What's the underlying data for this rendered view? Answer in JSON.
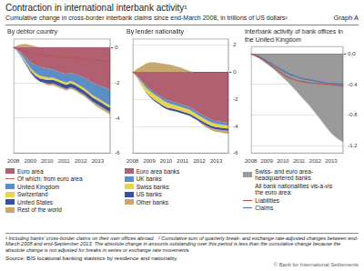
{
  "title": "Contraction in international interbank activity¹",
  "subtitle": "Cumulative change in cross-border interbank claims since end-March 2008, in trillions of US dollars²",
  "annotations": [
    "Graph A",
    "¹ Including banks’ cross-border claims on their own offices abroad.",
    "² Cumulative sum of quarterly break- and exchange rate-adjusted changes between end-March 2008 and end-September 2013. The absolute change in amounts outstanding over this period is less than the cumulative change because the absolute change is not adjusted for breaks in series or exchange rate movements.",
    "Source: BIS locational banking statistics by residence and nationality.",
    "© Bank for International Settlements"
  ],
  "chart_data": [
    {
      "type": "area",
      "title": "By debtor country",
      "stacked": true,
      "grid": "y",
      "legend": "bottom",
      "x": [
        2008,
        2008.2613636363635,
        2008.5227272727273,
        2008.784090909091,
        2009.0454545454545,
        2009.3068181818182,
        2009.5681818181818,
        2009.8295454545455,
        2010.090909090909,
        2010.3522727272727,
        2010.6136363636363,
        2010.875,
        2011.1363636363637,
        2011.3977272727273,
        2011.659090909091,
        2011.9204545454545,
        2012.1818181818182,
        2012.4431818181818,
        2012.7045454545455,
        2012.965909090909,
        2013.2272727272727,
        2013.4886363636363,
        2013.75
      ],
      "xlim": [
        2008,
        2013.75
      ],
      "xticks": [
        2008,
        2009,
        2010,
        2011,
        2012,
        2013
      ],
      "ylim": [
        -6,
        0.5
      ],
      "yticks": [
        0,
        -2,
        -4,
        -6
      ],
      "series": [
        {
          "name": "Euro area",
          "color": "#b06070",
          "values": [
            0,
            -0.15,
            -0.35,
            -0.6,
            -0.85,
            -1.0,
            -1.1,
            -1.15,
            -1.2,
            -1.25,
            -1.35,
            -1.45,
            -1.5,
            -1.45,
            -1.5,
            -1.6,
            -1.7,
            -1.85,
            -2.0,
            -2.1,
            -2.2,
            -2.3,
            -2.4
          ]
        },
        {
          "name": "Of which: from euro area",
          "type": "line",
          "line_style": "dashed",
          "color": "#c0504d",
          "values": [
            0,
            -0.1,
            -0.18,
            -0.25,
            -0.32,
            -0.38,
            -0.42,
            -0.45,
            -0.47,
            -0.5,
            -0.52,
            -0.54,
            -0.56,
            -0.57,
            -0.6,
            -0.63,
            -0.66,
            -0.68,
            -0.7,
            -0.72,
            -0.74,
            -0.76,
            -0.78
          ]
        },
        {
          "name": "United Kingdom",
          "color": "#5b8ec5",
          "values": [
            0,
            -0.05,
            -0.15,
            -0.25,
            -0.35,
            -0.45,
            -0.5,
            -0.5,
            -0.5,
            -0.45,
            -0.45,
            -0.45,
            -0.5,
            -0.45,
            -0.5,
            -0.55,
            -0.6,
            -0.65,
            -0.7,
            -0.75,
            -0.8,
            -0.85,
            -0.9
          ]
        },
        {
          "name": "Switzerland",
          "color": "#e8d44d",
          "values": [
            0,
            -0.03,
            -0.06,
            -0.1,
            -0.13,
            -0.15,
            -0.16,
            -0.16,
            -0.15,
            -0.13,
            -0.12,
            -0.12,
            -0.12,
            -0.13,
            -0.13,
            -0.13,
            -0.13,
            -0.13,
            -0.13,
            -0.13,
            -0.13,
            -0.13,
            -0.13
          ]
        },
        {
          "name": "United States",
          "color": "#3a4fa0",
          "values": [
            0,
            -0.03,
            -0.06,
            -0.1,
            -0.13,
            -0.16,
            -0.18,
            -0.19,
            -0.2,
            -0.21,
            -0.22,
            -0.22,
            -0.22,
            -0.22,
            -0.22,
            -0.23,
            -0.23,
            -0.23,
            -0.23,
            -0.23,
            -0.23,
            -0.23,
            -0.23
          ]
        },
        {
          "name": "Rest of the world",
          "color": "#c8a870",
          "values": [
            0,
            0.12,
            0.18,
            0.18,
            0.12,
            0.06,
            0.0,
            -0.06,
            -0.1,
            -0.1,
            -0.1,
            -0.1,
            -0.1,
            -0.1,
            -0.1,
            -0.1,
            -0.1,
            -0.1,
            -0.1,
            -0.15,
            -0.15,
            -0.15,
            -0.15
          ]
        }
      ]
    },
    {
      "type": "area",
      "title": "By lender nationality",
      "stacked": true,
      "grid": "y",
      "legend": "bottom",
      "x": [
        2008,
        2008.2613636363635,
        2008.5227272727273,
        2008.784090909091,
        2009.0454545454545,
        2009.3068181818182,
        2009.5681818181818,
        2009.8295454545455,
        2010.090909090909,
        2010.3522727272727,
        2010.6136363636363,
        2010.875,
        2011.1363636363637,
        2011.3977272727273,
        2011.659090909091,
        2011.9204545454545,
        2012.1818181818182,
        2012.4431818181818,
        2012.7045454545455,
        2012.965909090909,
        2013.2272727272727,
        2013.4886363636363,
        2013.75
      ],
      "xlim": [
        2008,
        2013.75
      ],
      "xticks": [
        2008,
        2009,
        2010,
        2011,
        2012,
        2013
      ],
      "ylim": [
        -6,
        2.5
      ],
      "yticks": [
        2,
        0,
        -2,
        -4,
        -6
      ],
      "series": [
        {
          "name": "Euro area banks",
          "color": "#b06070",
          "values": [
            0,
            -0.25,
            -0.6,
            -0.95,
            -1.25,
            -1.5,
            -1.7,
            -1.9,
            -2.05,
            -2.15,
            -2.25,
            -2.35,
            -2.45,
            -2.55,
            -2.75,
            -2.95,
            -3.15,
            -3.35,
            -3.5,
            -3.6,
            -3.65,
            -3.7,
            -3.75
          ]
        },
        {
          "name": "UK banks",
          "color": "#5b8ec5",
          "values": [
            0,
            -0.05,
            -0.1,
            -0.15,
            -0.15,
            -0.15,
            -0.15,
            -0.18,
            -0.2,
            -0.2,
            -0.2,
            -0.2,
            -0.2,
            -0.2,
            -0.2,
            -0.2,
            -0.2,
            -0.2,
            -0.2,
            -0.2,
            -0.2,
            -0.2,
            -0.2
          ]
        },
        {
          "name": "Swiss banks",
          "color": "#e8d44d",
          "values": [
            0,
            -0.1,
            -0.2,
            -0.3,
            -0.36,
            -0.38,
            -0.38,
            -0.37,
            -0.36,
            -0.32,
            -0.3,
            -0.3,
            -0.3,
            -0.3,
            -0.28,
            -0.27,
            -0.26,
            -0.25,
            -0.25,
            -0.24,
            -0.23,
            -0.22,
            -0.21
          ]
        },
        {
          "name": "US banks",
          "color": "#3a4fa0",
          "values": [
            0,
            -0.02,
            -0.04,
            -0.06,
            -0.08,
            -0.1,
            -0.12,
            -0.14,
            -0.15,
            -0.16,
            -0.16,
            -0.16,
            -0.16,
            -0.16,
            -0.16,
            -0.16,
            -0.16,
            -0.16,
            -0.16,
            -0.16,
            -0.16,
            -0.16,
            -0.16
          ]
        },
        {
          "name": "Other banks",
          "color": "#c8a870",
          "values": [
            0,
            0.25,
            0.45,
            0.65,
            0.75,
            0.75,
            0.7,
            0.65,
            0.6,
            0.55,
            0.45,
            0.35,
            0.22,
            0.1,
            0.0,
            -0.05,
            -0.1,
            -0.15,
            -0.15,
            -0.2,
            -0.2,
            -0.22,
            -0.22
          ]
        }
      ]
    },
    {
      "type": "area",
      "title": "Interbank activity of bank offices in\nthe United Kingdom",
      "grid": "y",
      "legend": "bottom",
      "annotations": [
        "All bank nationalities vis-à-vis\nthe euro area:"
      ],
      "x": [
        2008,
        2008.2613636363635,
        2008.5227272727273,
        2008.784090909091,
        2009.0454545454545,
        2009.3068181818182,
        2009.5681818181818,
        2009.8295454545455,
        2010.090909090909,
        2010.3522727272727,
        2010.6136363636363,
        2010.875,
        2011.1363636363637,
        2011.3977272727273,
        2011.659090909091,
        2011.9204545454545,
        2012.1818181818182,
        2012.4431818181818,
        2012.7045454545455,
        2012.965909090909,
        2013.2272727272727,
        2013.4886363636363,
        2013.75
      ],
      "xlim": [
        2008,
        2013.75
      ],
      "xticks": [
        2008,
        2009,
        2010,
        2011,
        2012,
        2013
      ],
      "ylim": [
        -1.3,
        0.1
      ],
      "yticks": [
        {
          "value": 0,
          "label": "0.0"
        },
        -0.4,
        -0.8,
        -1.2
      ],
      "series": [
        {
          "name": "Swiss- and euro area-\nheadquartered banks",
          "color": "#9a9a9a",
          "values": [
            0,
            -0.03,
            -0.06,
            -0.1,
            -0.14,
            -0.18,
            -0.23,
            -0.28,
            -0.33,
            -0.38,
            -0.44,
            -0.5,
            -0.56,
            -0.62,
            -0.68,
            -0.75,
            -0.82,
            -0.89,
            -0.96,
            -1.03,
            -1.08,
            -1.12,
            -1.15
          ]
        },
        {
          "name": "Liabilities",
          "type": "line",
          "line_style": "solid",
          "color": "#c0504d",
          "values": [
            0,
            -0.02,
            -0.05,
            -0.08,
            -0.12,
            -0.16,
            -0.2,
            -0.24,
            -0.28,
            -0.31,
            -0.33,
            -0.35,
            -0.36,
            -0.37,
            -0.38,
            -0.38,
            -0.39,
            -0.39,
            -0.4,
            -0.4,
            -0.41,
            -0.41,
            -0.42
          ]
        },
        {
          "name": "Claims",
          "type": "line",
          "line_style": "solid",
          "color": "#4472c4",
          "values": [
            0,
            -0.02,
            -0.04,
            -0.07,
            -0.1,
            -0.13,
            -0.17,
            -0.2,
            -0.23,
            -0.26,
            -0.28,
            -0.3,
            -0.32,
            -0.33,
            -0.34,
            -0.35,
            -0.36,
            -0.37,
            -0.38,
            -0.38,
            -0.39,
            -0.39,
            -0.4
          ]
        }
      ]
    }
  ]
}
